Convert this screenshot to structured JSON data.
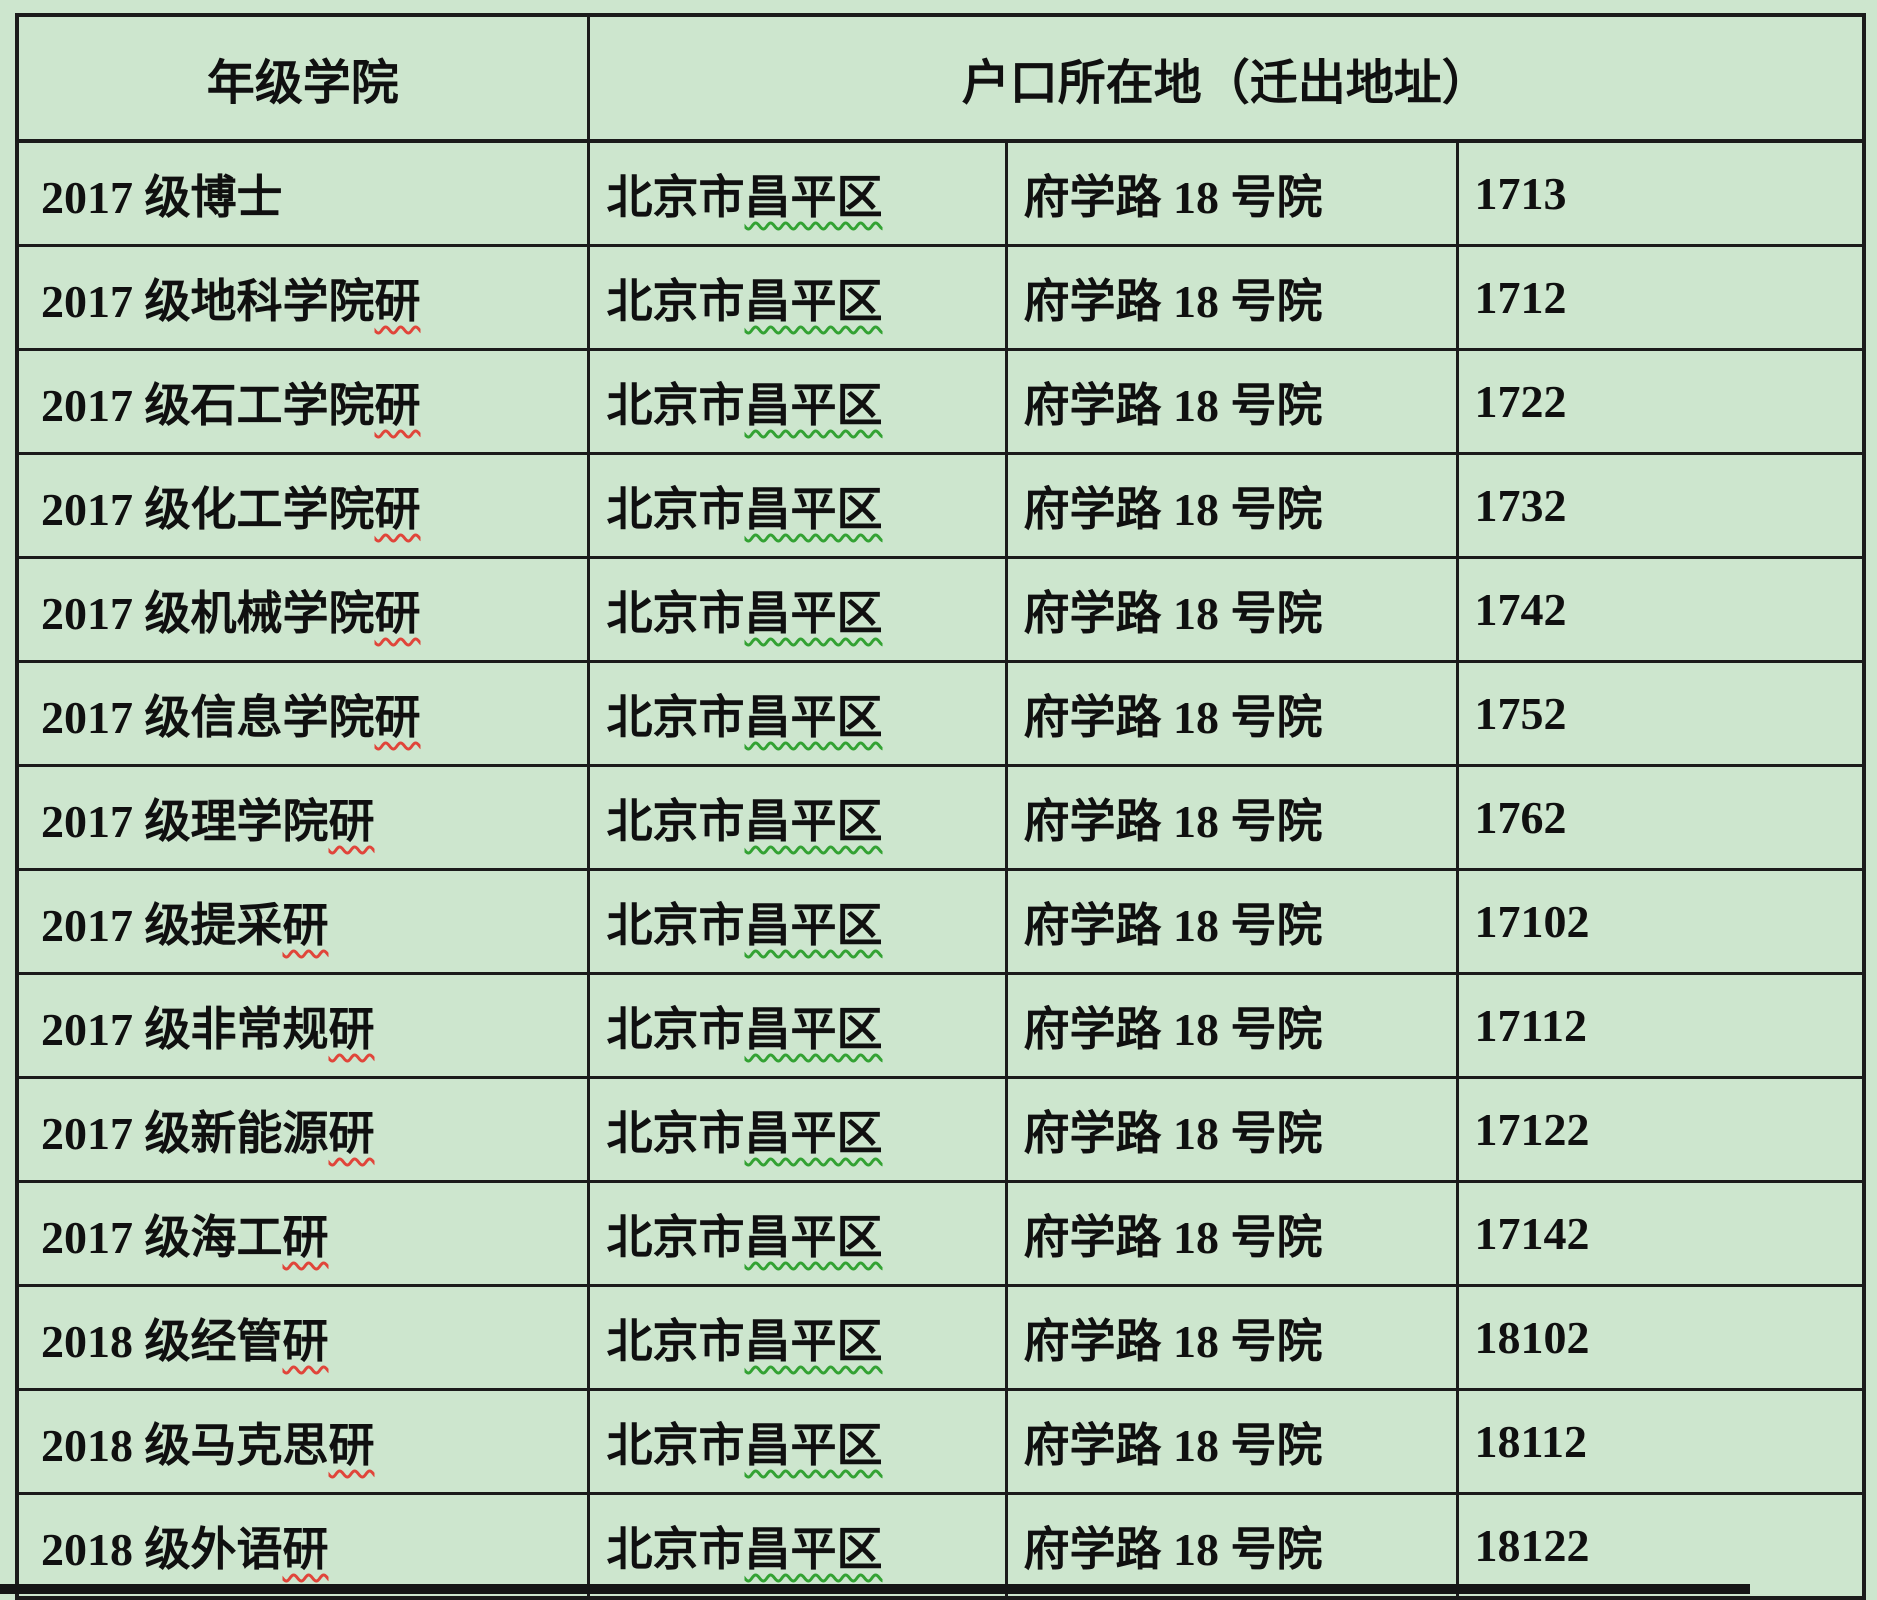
{
  "document": {
    "background_color": "#cde6ce",
    "border_color": "#1b1b1b",
    "text_color": "#101010",
    "spellcheck_green": "#33a233",
    "spellcheck_red": "#e0453a"
  },
  "table": {
    "header": {
      "col_grade_college": "年级学院",
      "col_registration": "户口所在地（迁出地址）"
    },
    "rows": [
      {
        "college": "2017 级博士",
        "college_marked": "",
        "district_pre": "北京市",
        "district_marked": "昌平区",
        "street": "府学路 18 号院",
        "number": "1713"
      },
      {
        "college": "2017 级地科学院",
        "college_marked": "研",
        "district_pre": "北京市",
        "district_marked": "昌平区",
        "street": "府学路 18 号院",
        "number": "1712"
      },
      {
        "college": "2017 级石工学院",
        "college_marked": "研",
        "district_pre": "北京市",
        "district_marked": "昌平区",
        "street": "府学路 18 号院",
        "number": "1722"
      },
      {
        "college": "2017 级化工学院",
        "college_marked": "研",
        "district_pre": "北京市",
        "district_marked": "昌平区",
        "street": "府学路 18 号院",
        "number": "1732"
      },
      {
        "college": "2017 级机械学院",
        "college_marked": "研",
        "district_pre": "北京市",
        "district_marked": "昌平区",
        "street": "府学路 18 号院",
        "number": "1742"
      },
      {
        "college": "2017 级信息学院",
        "college_marked": "研",
        "district_pre": "北京市",
        "district_marked": "昌平区",
        "street": "府学路 18 号院",
        "number": "1752"
      },
      {
        "college": "2017 级理学院",
        "college_marked": "研",
        "district_pre": "北京市",
        "district_marked": "昌平区",
        "street": "府学路 18 号院",
        "number": "1762"
      },
      {
        "college": "2017 级提采",
        "college_marked": "研",
        "district_pre": "北京市",
        "district_marked": "昌平区",
        "street": "府学路 18 号院",
        "number": "17102"
      },
      {
        "college": "2017 级非常规",
        "college_marked": "研",
        "district_pre": "北京市",
        "district_marked": "昌平区",
        "street": "府学路 18 号院",
        "number": "17112"
      },
      {
        "college": "2017 级新能源",
        "college_marked": "研",
        "district_pre": "北京市",
        "district_marked": "昌平区",
        "street": "府学路 18 号院",
        "number": "17122"
      },
      {
        "college": "2017 级海工",
        "college_marked": "研",
        "district_pre": "北京市",
        "district_marked": "昌平区",
        "street": "府学路 18 号院",
        "number": "17142"
      },
      {
        "college": "2018 级经管",
        "college_marked": "研",
        "district_pre": "北京市",
        "district_marked": "昌平区",
        "street": "府学路 18 号院",
        "number": "18102"
      },
      {
        "college": "2018 级马克思",
        "college_marked": "研",
        "district_pre": "北京市",
        "district_marked": "昌平区",
        "street": "府学路 18 号院",
        "number": "18112"
      },
      {
        "college": "2018 级外语",
        "college_marked": "研",
        "district_pre": "北京市",
        "district_marked": "昌平区",
        "street": "府学路 18 号院",
        "number": "18122"
      }
    ]
  }
}
